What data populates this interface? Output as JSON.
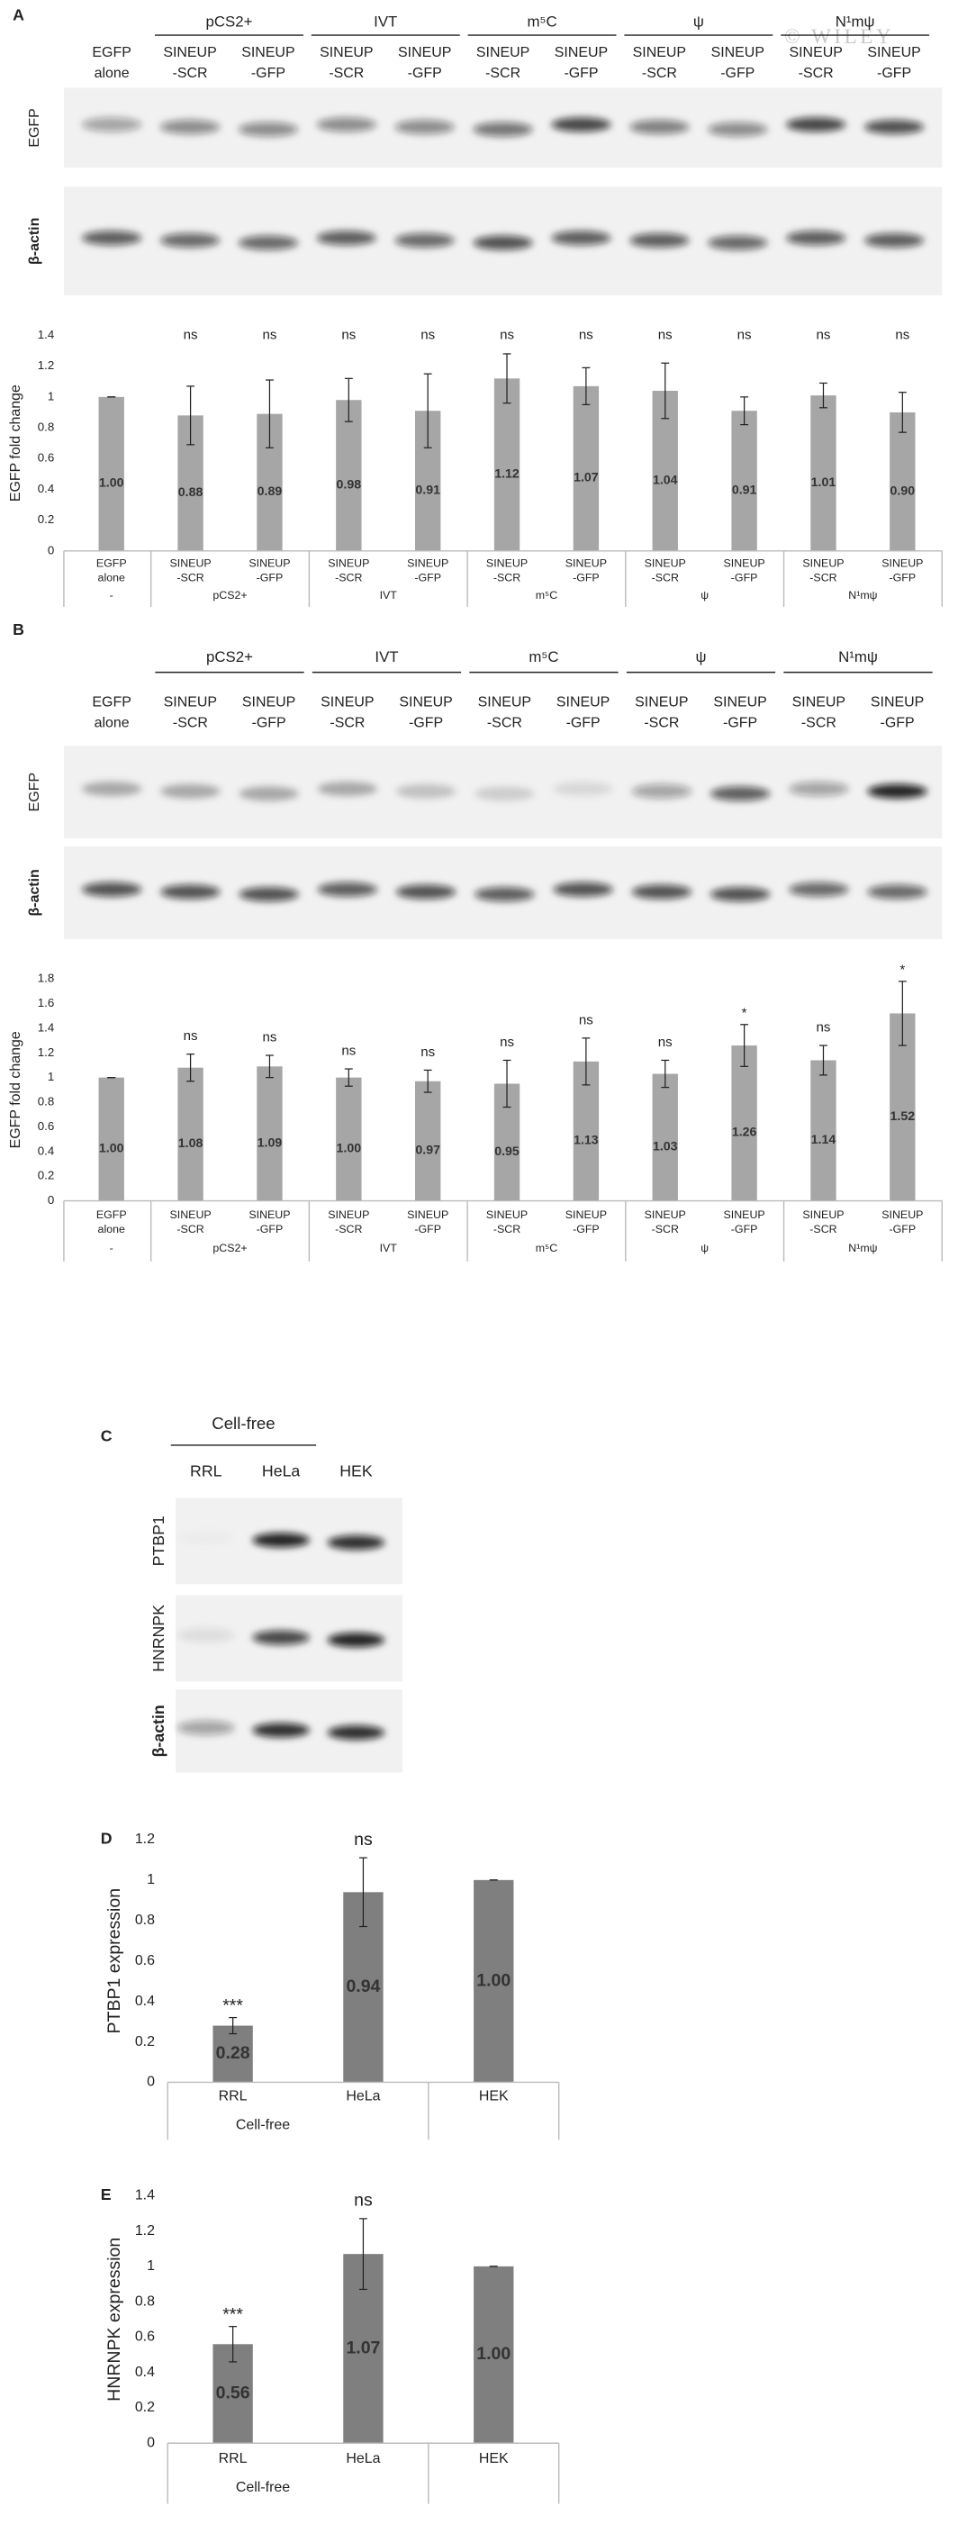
{
  "watermark": "© WILEY",
  "blots": [
    {
      "panel": "A",
      "groups": [
        {
          "label": null,
          "size": 1
        },
        {
          "label": "pCS2+",
          "size": 2
        },
        {
          "label": "IVT",
          "size": 2
        },
        {
          "label": "m⁵C",
          "size": 2
        },
        {
          "label": "ψ",
          "size": 2
        },
        {
          "label": "N¹mψ",
          "size": 2
        }
      ],
      "lanes": [
        [
          "EGFP",
          "alone"
        ],
        [
          "SINEUP",
          "-SCR"
        ],
        [
          "SINEUP",
          "-GFP"
        ],
        [
          "SINEUP",
          "-SCR"
        ],
        [
          "SINEUP",
          "-GFP"
        ],
        [
          "SINEUP",
          "-SCR"
        ],
        [
          "SINEUP",
          "-GFP"
        ],
        [
          "SINEUP",
          "-SCR"
        ],
        [
          "SINEUP",
          "-GFP"
        ],
        [
          "SINEUP",
          "-SCR"
        ],
        [
          "SINEUP",
          "-GFP"
        ]
      ],
      "rows": [
        "EGFP",
        "β-actin"
      ]
    },
    {
      "panel": "B",
      "groups": [
        {
          "label": null,
          "size": 1
        },
        {
          "label": "pCS2+",
          "size": 2
        },
        {
          "label": "IVT",
          "size": 2
        },
        {
          "label": "m⁵C",
          "size": 2
        },
        {
          "label": "ψ",
          "size": 2
        },
        {
          "label": "N¹mψ",
          "size": 2
        }
      ],
      "lanes": [
        [
          "EGFP",
          "alone"
        ],
        [
          "SINEUP",
          "-SCR"
        ],
        [
          "SINEUP",
          "-GFP"
        ],
        [
          "SINEUP",
          "-SCR"
        ],
        [
          "SINEUP",
          "-GFP"
        ],
        [
          "SINEUP",
          "-SCR"
        ],
        [
          "SINEUP",
          "-GFP"
        ],
        [
          "SINEUP",
          "-SCR"
        ],
        [
          "SINEUP",
          "-GFP"
        ],
        [
          "SINEUP",
          "-SCR"
        ],
        [
          "SINEUP",
          "-GFP"
        ]
      ],
      "rows": [
        "EGFP",
        "β-actin"
      ]
    },
    {
      "panel": "C",
      "groups": [
        {
          "label": "Cell-free",
          "size": 2
        },
        {
          "label": null,
          "size": 1
        }
      ],
      "lanes": [
        [
          "RRL"
        ],
        [
          "HeLa"
        ],
        [
          "HEK"
        ]
      ],
      "rows": [
        "PTBP1",
        "HNRNPK",
        "β-actin"
      ]
    }
  ],
  "chart_data": [
    {
      "type": "bar",
      "ylabel": "EGFP fold change",
      "color": "#a6a6a6",
      "categories": [
        [
          "EGFP",
          "alone"
        ],
        [
          "SINEUP",
          "-SCR"
        ],
        [
          "SINEUP",
          "-GFP"
        ],
        [
          "SINEUP",
          "-SCR"
        ],
        [
          "SINEUP",
          "-GFP"
        ],
        [
          "SINEUP",
          "-SCR"
        ],
        [
          "SINEUP",
          "-GFP"
        ],
        [
          "SINEUP",
          "-SCR"
        ],
        [
          "SINEUP",
          "-GFP"
        ],
        [
          "SINEUP",
          "-SCR"
        ],
        [
          "SINEUP",
          "-GFP"
        ]
      ],
      "groups": [
        {
          "label": "-",
          "size": 1
        },
        {
          "label": "pCS2+",
          "size": 2
        },
        {
          "label": "IVT",
          "size": 2
        },
        {
          "label": "m⁵C",
          "size": 2
        },
        {
          "label": "ψ",
          "size": 2
        },
        {
          "label": "N¹mψ",
          "size": 2
        }
      ],
      "values": [
        1.0,
        0.88,
        0.89,
        0.98,
        0.91,
        1.12,
        1.07,
        1.04,
        0.91,
        1.01,
        0.9
      ],
      "value_labels": [
        "1.00",
        "0.88",
        "0.89",
        "0.98",
        "0.91",
        "1.12",
        "1.07",
        "1.04",
        "0.91",
        "1.01",
        "0.90"
      ],
      "errors": [
        0,
        0.19,
        0.22,
        0.14,
        0.24,
        0.16,
        0.12,
        0.18,
        0.09,
        0.08,
        0.13
      ],
      "significance": [
        null,
        "ns",
        "ns",
        "ns",
        "ns",
        "ns",
        "ns",
        "ns",
        "ns",
        "ns",
        "ns"
      ],
      "ylim": [
        0,
        1.4
      ],
      "yticks": [
        0,
        0.2,
        0.4,
        0.6,
        0.8,
        1,
        1.2,
        1.4
      ]
    },
    {
      "type": "bar",
      "ylabel": "EGFP fold change",
      "color": "#a6a6a6",
      "categories": [
        [
          "EGFP",
          "alone"
        ],
        [
          "SINEUP",
          "-SCR"
        ],
        [
          "SINEUP",
          "-GFP"
        ],
        [
          "SINEUP",
          "-SCR"
        ],
        [
          "SINEUP",
          "-GFP"
        ],
        [
          "SINEUP",
          "-SCR"
        ],
        [
          "SINEUP",
          "-GFP"
        ],
        [
          "SINEUP",
          "-SCR"
        ],
        [
          "SINEUP",
          "-GFP"
        ],
        [
          "SINEUP",
          "-SCR"
        ],
        [
          "SINEUP",
          "-GFP"
        ]
      ],
      "groups": [
        {
          "label": "-",
          "size": 1
        },
        {
          "label": "pCS2+",
          "size": 2
        },
        {
          "label": "IVT",
          "size": 2
        },
        {
          "label": "m⁵C",
          "size": 2
        },
        {
          "label": "ψ",
          "size": 2
        },
        {
          "label": "N¹mψ",
          "size": 2
        }
      ],
      "values": [
        1.0,
        1.08,
        1.09,
        1.0,
        0.97,
        0.95,
        1.13,
        1.03,
        1.26,
        1.14,
        1.52
      ],
      "value_labels": [
        "1.00",
        "1.08",
        "1.09",
        "1.00",
        "0.97",
        "0.95",
        "1.13",
        "1.03",
        "1.26",
        "1.14",
        "1.52"
      ],
      "errors": [
        0,
        0.11,
        0.09,
        0.07,
        0.09,
        0.19,
        0.19,
        0.11,
        0.17,
        0.12,
        0.26
      ],
      "significance": [
        null,
        "ns",
        "ns",
        "ns",
        "ns",
        "ns",
        "ns",
        "ns",
        "*",
        "ns",
        "*"
      ],
      "ylim": [
        0,
        1.8
      ],
      "yticks": [
        0,
        0.2,
        0.4,
        0.6,
        0.8,
        1,
        1.2,
        1.4,
        1.6,
        1.8
      ]
    },
    {
      "type": "bar",
      "panel": "D",
      "ylabel": "PTBP1 expression",
      "color": "#7f7f7f",
      "categories": [
        [
          "RRL"
        ],
        [
          "HeLa"
        ],
        [
          "HEK"
        ]
      ],
      "groups": [
        {
          "label": "Cell-free",
          "size": 2
        },
        {
          "label": null,
          "size": 1
        }
      ],
      "values": [
        0.28,
        0.94,
        1.0
      ],
      "value_labels": [
        "0.28",
        "0.94",
        "1.00"
      ],
      "errors": [
        0.04,
        0.17,
        0
      ],
      "significance": [
        "***",
        "ns",
        null
      ],
      "ylim": [
        0,
        1.2
      ],
      "yticks": [
        0,
        0.2,
        0.4,
        0.6,
        0.8,
        1,
        1.2
      ]
    },
    {
      "type": "bar",
      "panel": "E",
      "ylabel": "HNRNPK expression",
      "color": "#7f7f7f",
      "categories": [
        [
          "RRL"
        ],
        [
          "HeLa"
        ],
        [
          "HEK"
        ]
      ],
      "groups": [
        {
          "label": "Cell-free",
          "size": 2
        },
        {
          "label": null,
          "size": 1
        }
      ],
      "values": [
        0.56,
        1.07,
        1.0
      ],
      "value_labels": [
        "0.56",
        "1.07",
        "1.00"
      ],
      "errors": [
        0.1,
        0.2,
        0
      ],
      "significance": [
        "***",
        "ns",
        null
      ],
      "ylim": [
        0,
        1.4
      ],
      "yticks": [
        0,
        0.2,
        0.4,
        0.6,
        0.8,
        1,
        1.2,
        1.4
      ]
    }
  ]
}
